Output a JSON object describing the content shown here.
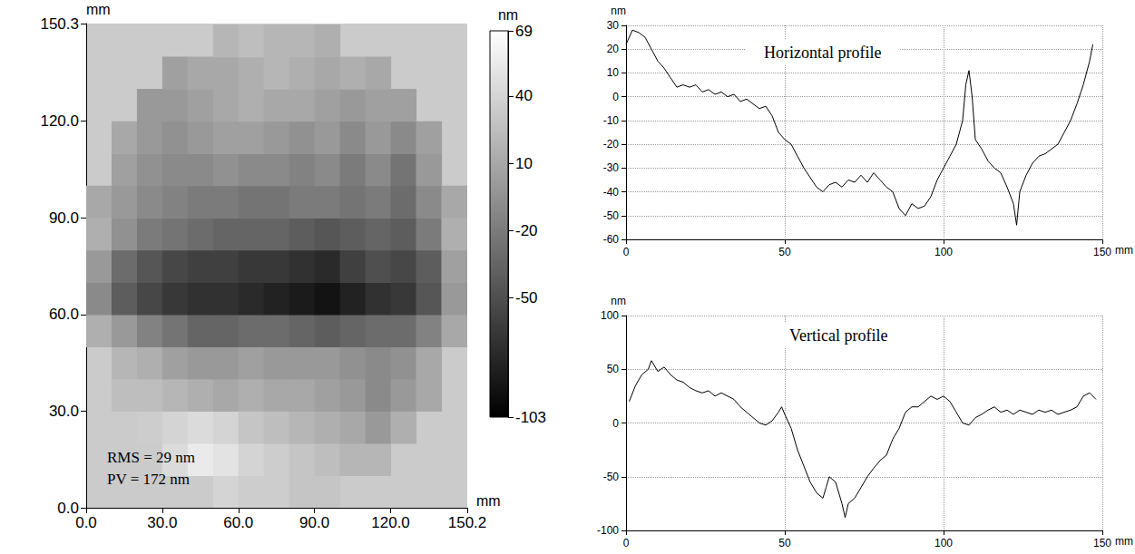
{
  "chart_data": [
    {
      "type": "heatmap",
      "x_label": "mm",
      "y_label": "mm",
      "xlim": [
        0,
        150.2
      ],
      "ylim": [
        0,
        150.3
      ],
      "xticks": [
        {
          "value": 0,
          "label": "0.0"
        },
        {
          "value": 30,
          "label": "30.0"
        },
        {
          "value": 60,
          "label": "60.0"
        },
        {
          "value": 90,
          "label": "90.0"
        },
        {
          "value": 120,
          "label": "120.0"
        },
        {
          "value": 150.2,
          "label": "150.2"
        }
      ],
      "yticks": [
        {
          "value": 0,
          "label": "0.0"
        },
        {
          "value": 30,
          "label": "30.0"
        },
        {
          "value": 60,
          "label": "60.0"
        },
        {
          "value": 90,
          "label": "90.0"
        },
        {
          "value": 120,
          "label": "120.0"
        },
        {
          "value": 150.3,
          "label": "150.3"
        }
      ],
      "x": [
        5,
        15,
        25,
        35,
        45,
        55,
        65,
        75,
        85,
        95,
        105,
        115,
        125,
        135,
        145
      ],
      "y": [
        5,
        15,
        25,
        35,
        45,
        55,
        65,
        75,
        85,
        95,
        105,
        115,
        125,
        135,
        145
      ],
      "z": [
        [
          null,
          null,
          null,
          null,
          null,
          40,
          35,
          35,
          30,
          30,
          null,
          null,
          null,
          null,
          null
        ],
        [
          null,
          null,
          null,
          45,
          55,
          50,
          40,
          35,
          30,
          25,
          20,
          20,
          null,
          null,
          null
        ],
        [
          null,
          null,
          35,
          40,
          45,
          40,
          30,
          25,
          20,
          15,
          10,
          0,
          15,
          null,
          null
        ],
        [
          null,
          25,
          25,
          20,
          15,
          10,
          15,
          10,
          10,
          5,
          0,
          -10,
          0,
          10,
          null
        ],
        [
          null,
          20,
          15,
          5,
          0,
          0,
          5,
          0,
          0,
          0,
          -5,
          -10,
          -5,
          10,
          null
        ],
        [
          15,
          0,
          -15,
          -25,
          -35,
          -35,
          -30,
          -30,
          -35,
          -40,
          -35,
          -30,
          -30,
          -15,
          10
        ],
        [
          -10,
          -40,
          -55,
          -65,
          -70,
          -70,
          -75,
          -80,
          -85,
          -90,
          -80,
          -70,
          -65,
          -45,
          0
        ],
        [
          0,
          -30,
          -45,
          -55,
          -60,
          -60,
          -65,
          -65,
          -70,
          -75,
          -60,
          -50,
          -55,
          -40,
          5
        ],
        [
          15,
          -5,
          -20,
          -25,
          -30,
          -35,
          -35,
          -35,
          -40,
          -45,
          -40,
          -35,
          -40,
          -20,
          15
        ],
        [
          10,
          0,
          -10,
          -15,
          -20,
          -20,
          -25,
          -25,
          -20,
          -20,
          -25,
          -20,
          -30,
          -10,
          10
        ],
        [
          null,
          5,
          -5,
          -10,
          -10,
          -5,
          -10,
          -10,
          -15,
          -10,
          -20,
          -10,
          -25,
          0,
          null
        ],
        [
          null,
          10,
          0,
          -5,
          0,
          5,
          5,
          0,
          -5,
          0,
          -10,
          0,
          -10,
          5,
          null
        ],
        [
          null,
          null,
          0,
          0,
          5,
          10,
          15,
          10,
          10,
          5,
          0,
          5,
          5,
          null,
          null
        ],
        [
          null,
          null,
          null,
          5,
          10,
          10,
          15,
          20,
          15,
          10,
          15,
          10,
          null,
          null,
          null
        ],
        [
          null,
          null,
          null,
          null,
          null,
          20,
          25,
          20,
          20,
          15,
          null,
          null,
          null,
          null,
          null
        ]
      ],
      "colorbar": {
        "label": "nm",
        "range": [
          -103,
          69
        ],
        "ticks": [
          69,
          40,
          10,
          -20,
          -50,
          -103
        ]
      },
      "annotations": [
        "RMS = 29 nm",
        "PV = 172 nm"
      ]
    },
    {
      "type": "line",
      "title": "Horizontal profile",
      "x_label": "mm",
      "y_label": "nm",
      "xlim": [
        0,
        150
      ],
      "ylim": [
        -60,
        30
      ],
      "xticks": [
        0,
        50,
        100,
        150
      ],
      "yticks": [
        -60,
        -50,
        -40,
        -30,
        -20,
        -10,
        0,
        10,
        20,
        30
      ],
      "grid": true,
      "color": "#000000",
      "x": [
        0,
        2,
        4,
        6,
        8,
        10,
        12,
        14,
        16,
        18,
        20,
        22,
        24,
        26,
        28,
        30,
        32,
        34,
        36,
        38,
        40,
        42,
        44,
        46,
        48,
        50,
        52,
        54,
        56,
        58,
        60,
        62,
        64,
        66,
        68,
        70,
        72,
        74,
        76,
        78,
        80,
        82,
        84,
        86,
        88,
        90,
        92,
        94,
        96,
        98,
        100,
        102,
        104,
        106,
        107,
        108,
        109,
        110,
        112,
        114,
        116,
        118,
        120,
        122,
        123,
        124,
        126,
        128,
        130,
        132,
        134,
        136,
        138,
        140,
        142,
        144,
        146,
        147
      ],
      "values": [
        22,
        28,
        27,
        25,
        20,
        15,
        12,
        8,
        4,
        5,
        4,
        5,
        2,
        3,
        1,
        2,
        0,
        1,
        -2,
        -1,
        -3,
        -5,
        -4,
        -8,
        -15,
        -18,
        -20,
        -25,
        -30,
        -34,
        -38,
        -40,
        -37,
        -36,
        -38,
        -35,
        -36,
        -33,
        -36,
        -32,
        -35,
        -38,
        -40,
        -47,
        -50,
        -45,
        -47,
        -46,
        -42,
        -35,
        -30,
        -25,
        -20,
        -10,
        5,
        11,
        0,
        -18,
        -22,
        -27,
        -30,
        -32,
        -38,
        -45,
        -54,
        -40,
        -33,
        -28,
        -25,
        -24,
        -22,
        -20,
        -15,
        -10,
        -3,
        5,
        15,
        22
      ]
    },
    {
      "type": "line",
      "title": "Vertical profile",
      "x_label": "mm",
      "y_label": "nm",
      "xlim": [
        0,
        150
      ],
      "ylim": [
        -100,
        100
      ],
      "xticks": [
        0,
        50,
        100,
        150
      ],
      "yticks": [
        -100,
        -50,
        0,
        50,
        100
      ],
      "grid": true,
      "color": "#000000",
      "x": [
        1,
        3,
        5,
        7,
        8,
        10,
        12,
        14,
        16,
        18,
        20,
        22,
        24,
        26,
        28,
        30,
        32,
        34,
        36,
        38,
        40,
        42,
        44,
        46,
        48,
        49,
        50,
        52,
        54,
        56,
        58,
        60,
        62,
        63,
        64,
        66,
        68,
        69,
        70,
        72,
        74,
        76,
        78,
        80,
        82,
        84,
        86,
        88,
        90,
        92,
        94,
        96,
        98,
        100,
        102,
        104,
        106,
        108,
        110,
        112,
        114,
        116,
        118,
        120,
        122,
        124,
        126,
        128,
        130,
        132,
        134,
        136,
        138,
        140,
        142,
        144,
        146,
        148
      ],
      "values": [
        20,
        35,
        45,
        50,
        58,
        48,
        52,
        45,
        40,
        38,
        33,
        30,
        28,
        30,
        25,
        28,
        25,
        22,
        15,
        10,
        5,
        0,
        -2,
        2,
        10,
        15,
        8,
        -5,
        -25,
        -40,
        -55,
        -65,
        -70,
        -60,
        -50,
        -55,
        -75,
        -88,
        -75,
        -70,
        -60,
        -50,
        -42,
        -35,
        -30,
        -15,
        -5,
        10,
        15,
        15,
        20,
        25,
        22,
        25,
        20,
        10,
        0,
        -2,
        5,
        8,
        12,
        15,
        10,
        12,
        8,
        12,
        10,
        8,
        12,
        10,
        12,
        8,
        10,
        12,
        15,
        25,
        28,
        22
      ]
    }
  ]
}
